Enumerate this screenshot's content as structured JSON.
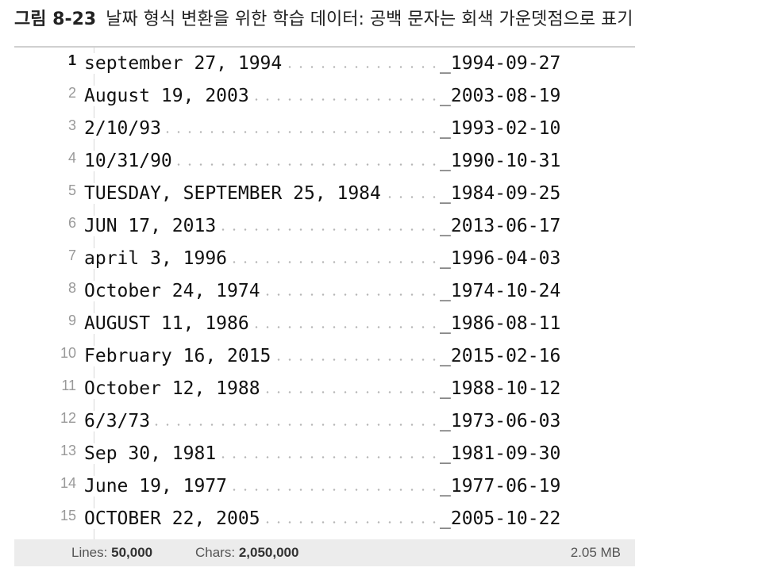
{
  "caption": {
    "figure_number": "그림 8-23",
    "title": "날짜 형식 변환을 위한 학습 데이터: 공백 문자는 회색 가운뎃점으로 표기"
  },
  "editor": {
    "lines": [
      {
        "number": "1",
        "source": "september 27, 1994",
        "target": "_1994-09-27"
      },
      {
        "number": "2",
        "source": "August 19, 2003",
        "target": "_2003-08-19"
      },
      {
        "number": "3",
        "source": "2/10/93",
        "target": "_1993-02-10"
      },
      {
        "number": "4",
        "source": "10/31/90",
        "target": "_1990-10-31"
      },
      {
        "number": "5",
        "source": "TUESDAY, SEPTEMBER 25, 1984",
        "target": "_1984-09-25"
      },
      {
        "number": "6",
        "source": "JUN 17, 2013",
        "target": "_2013-06-17"
      },
      {
        "number": "7",
        "source": "april 3, 1996",
        "target": "_1996-04-03"
      },
      {
        "number": "8",
        "source": "October 24, 1974",
        "target": "_1974-10-24"
      },
      {
        "number": "9",
        "source": "AUGUST 11, 1986",
        "target": "_1986-08-11"
      },
      {
        "number": "10",
        "source": "February 16, 2015",
        "target": "_2015-02-16"
      },
      {
        "number": "11",
        "source": "October 12, 1988",
        "target": "_1988-10-12"
      },
      {
        "number": "12",
        "source": "6/3/73",
        "target": "_1973-06-03"
      },
      {
        "number": "13",
        "source": "Sep 30, 1981",
        "target": "_1981-09-30"
      },
      {
        "number": "14",
        "source": "June 19, 1977",
        "target": "_1977-06-19"
      },
      {
        "number": "15",
        "source": "OCTOBER 22, 2005",
        "target": "_2005-10-22"
      }
    ]
  },
  "statusbar": {
    "lines_label": "Lines:",
    "lines_value": "50,000",
    "chars_label": "Chars:",
    "chars_value": "2,050,000",
    "file_size": "2.05 MB"
  }
}
